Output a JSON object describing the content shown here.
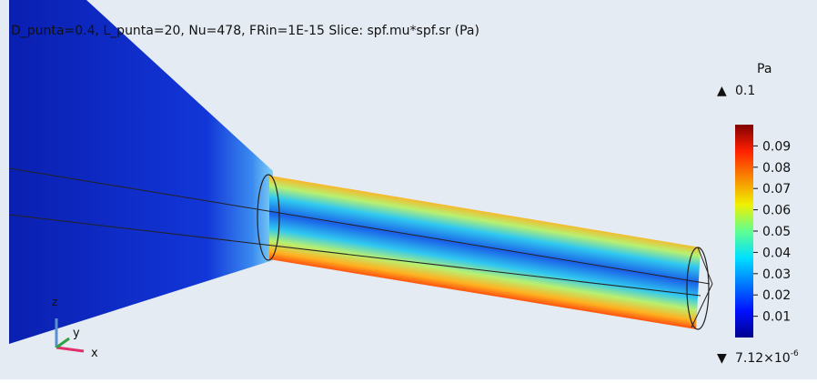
{
  "header": {
    "title": "D_punta=0.4, L_punta=20, Nu=478, FRin=1E-15  Slice: spf.mu*spf.sr (Pa)"
  },
  "colorbar": {
    "unit": "Pa",
    "max": 0.1,
    "ticks": [
      0.09,
      0.08,
      0.07,
      0.06,
      0.05,
      0.04,
      0.03,
      0.02,
      0.01
    ],
    "min": {
      "value": 7.12e-06,
      "mantissa": "7.12×10",
      "exponent": "-6"
    }
  },
  "axes": {
    "z": "z",
    "y": "y",
    "x": "x"
  }
}
